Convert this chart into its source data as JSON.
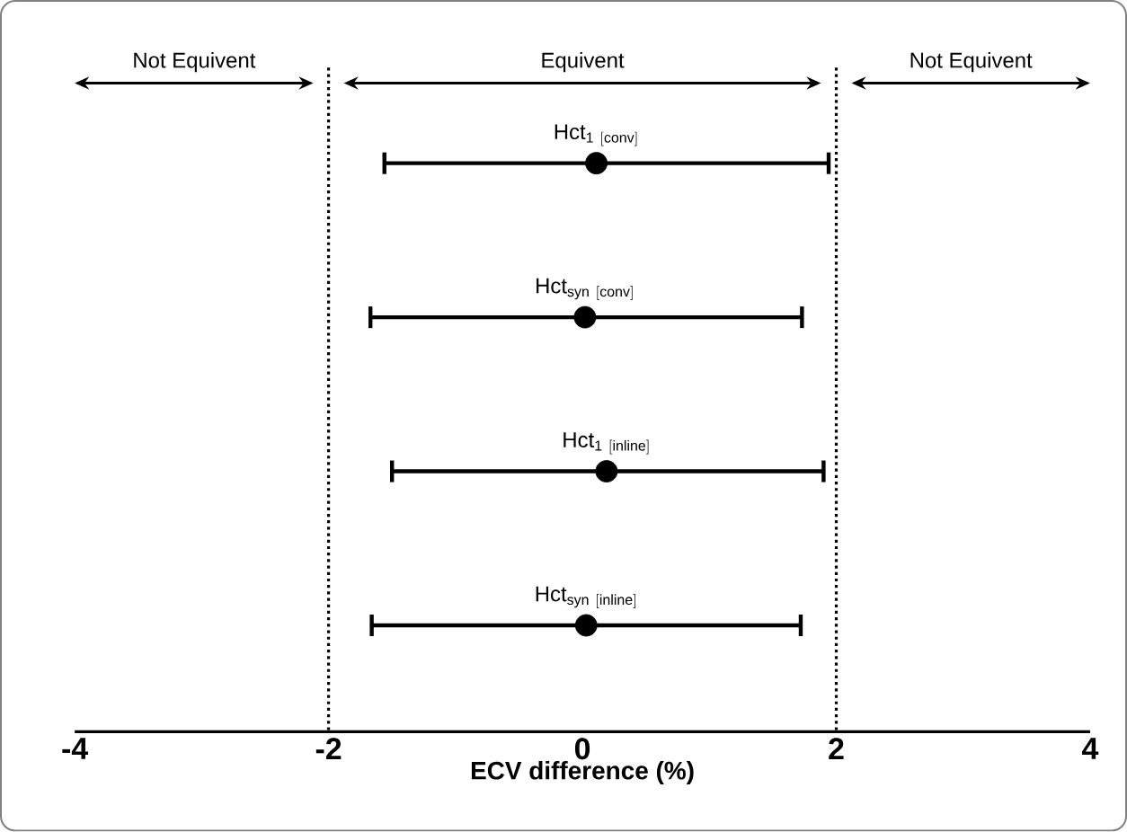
{
  "chart_data": {
    "type": "scatter",
    "orientation": "horizontal",
    "xlabel": "ECV difference (%)",
    "categories": [
      "\\mathrm{Hct}_{\\mathrm{1\\ [conv]}}",
      "\\mathrm{Hct}_{\\mathrm{syn\\ [conv]}}",
      "\\mathrm{Hct}_{\\mathrm{1\\ [inline]}}",
      "\\mathrm{Hct}_{\\mathrm{syn\\ [inline]}}"
    ],
    "values": [
      0.11,
      0.02,
      0.19,
      0.03
    ],
    "errors": [
      [
        -1.56,
        1.94
      ],
      [
        -1.67,
        1.73
      ],
      [
        -1.5,
        1.9
      ],
      [
        -1.66,
        1.72
      ]
    ],
    "color": "#000000",
    "marker": "circle",
    "xlim": [
      -4,
      4
    ],
    "xticks": [
      -4,
      -2,
      0,
      2,
      4
    ],
    "ref_lines": [
      {
        "axis": "x",
        "value": -2,
        "line_style": "dotted",
        "color": "#000000"
      },
      {
        "axis": "x",
        "value": 2,
        "line_style": "dotted",
        "color": "#000000"
      }
    ],
    "annotations": [
      "Not Equivent",
      "Equivent",
      "Not Equivent"
    ]
  }
}
